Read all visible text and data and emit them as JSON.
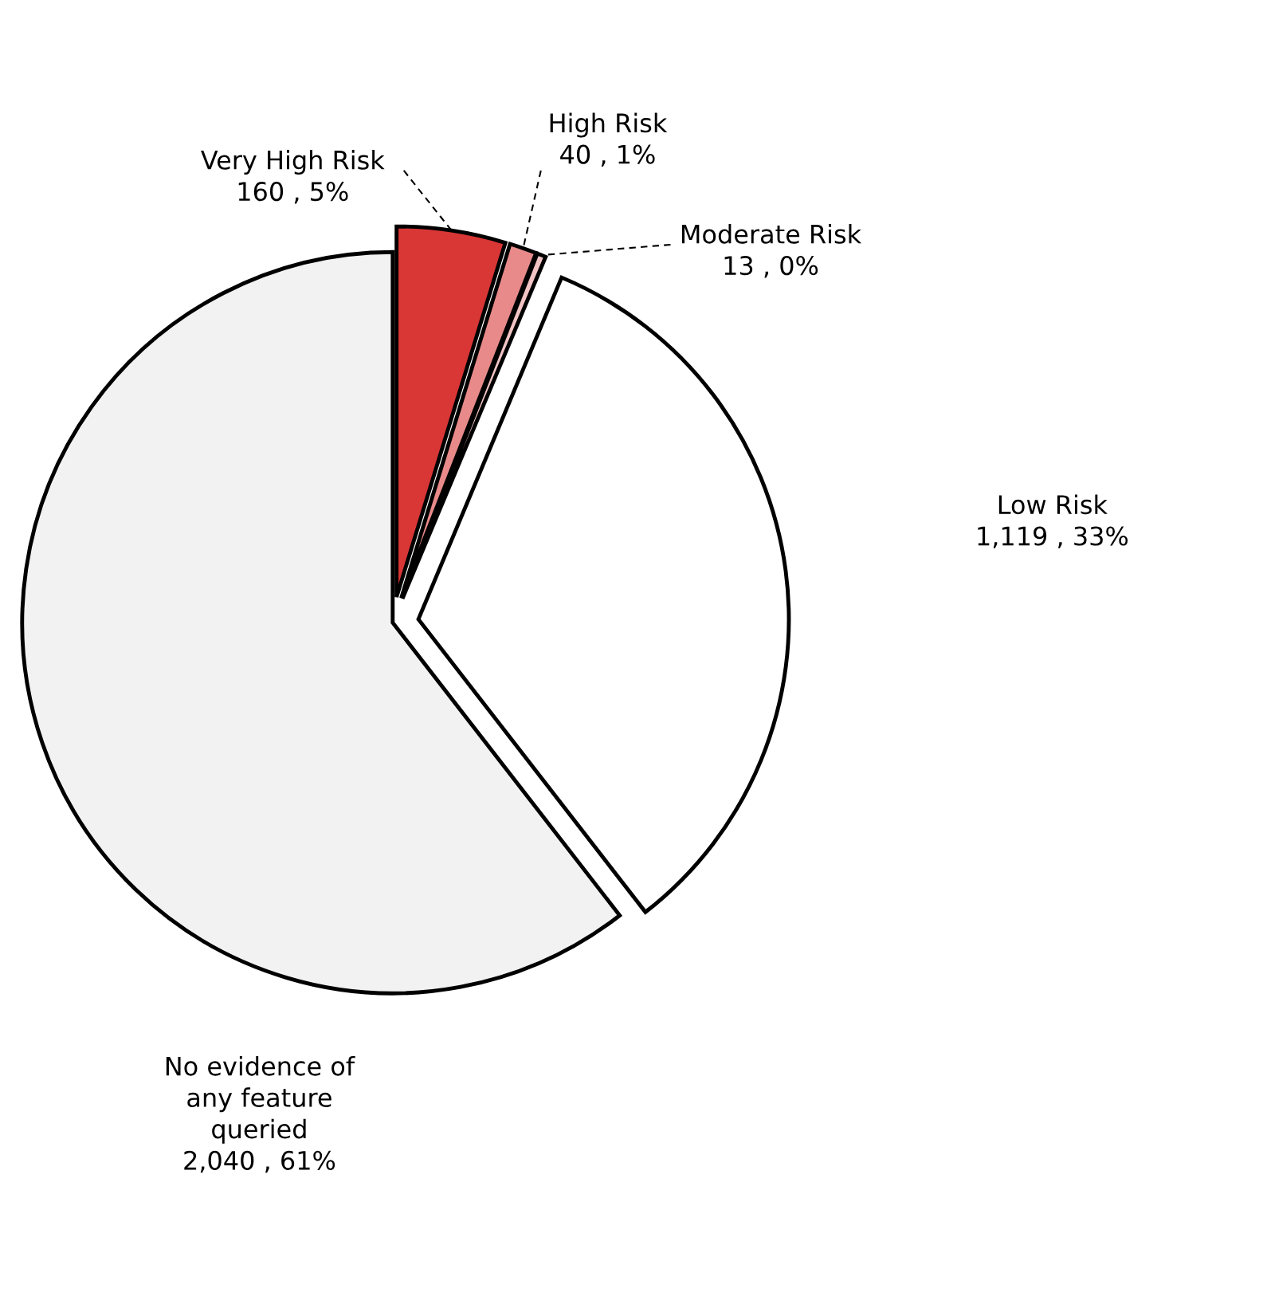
{
  "chart_data": {
    "type": "pie",
    "categories": [
      "Very High Risk",
      "High Risk",
      "Moderate Risk",
      "Low Risk",
      "No evidence of\nany feature\nqueried"
    ],
    "values": [
      160,
      40,
      13,
      1119,
      2040
    ],
    "value_labels": [
      "160 , 5%",
      "40 , 1%",
      "13 , 0%",
      "1,119 , 33%",
      "2,040 , 61%"
    ],
    "colors": [
      "#d93636",
      "#e88a8a",
      "#f2c4c4",
      "#ffffff",
      "#f2f2f2"
    ],
    "legend": false
  }
}
